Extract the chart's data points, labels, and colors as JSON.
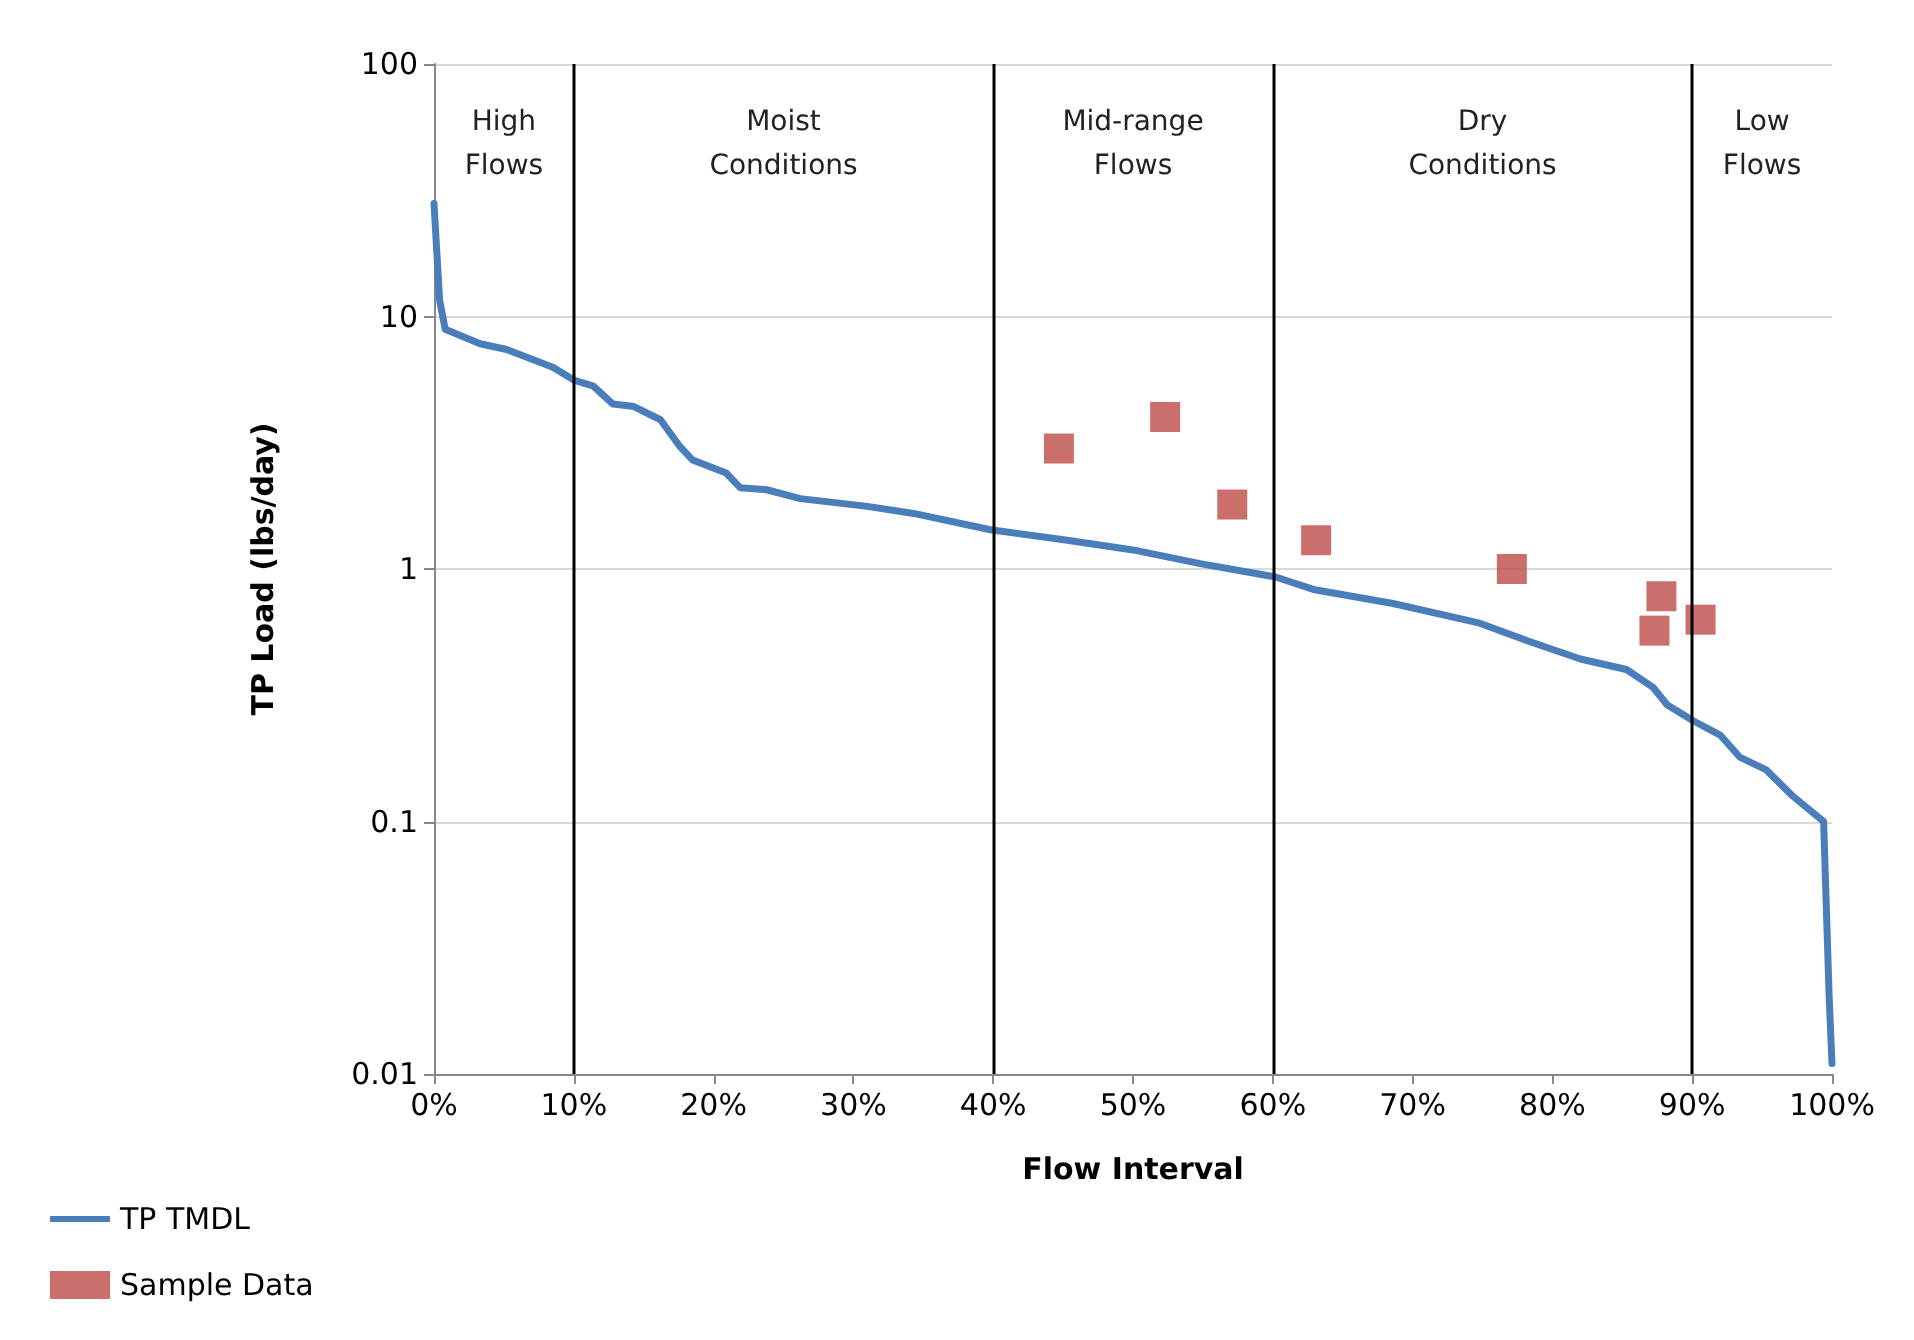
{
  "chart_data": {
    "type": "line",
    "xlabel": "Flow Interval",
    "ylabel": "TP Load (lbs/day)",
    "log": "y",
    "grid": "y",
    "legend": "bottom left",
    "xlim": [
      0,
      100
    ],
    "xticks": [
      {
        "value": 0,
        "label": "0%"
      },
      {
        "value": 10,
        "label": "10%"
      },
      {
        "value": 20,
        "label": "20%"
      },
      {
        "value": 30,
        "label": "30%"
      },
      {
        "value": 40,
        "label": "40%"
      },
      {
        "value": 50,
        "label": "50%"
      },
      {
        "value": 60,
        "label": "60%"
      },
      {
        "value": 70,
        "label": "70%"
      },
      {
        "value": 80,
        "label": "80%"
      },
      {
        "value": 90,
        "label": "90%"
      },
      {
        "value": 100,
        "label": "100%"
      }
    ],
    "ylim": [
      0.01,
      100
    ],
    "yticks": [
      0.01,
      0.1,
      1,
      10,
      100
    ],
    "series": [
      {
        "name": "TP TMDL",
        "color": "#4a7ebb",
        "marker": "none",
        "line_style": "solid",
        "x": [
          0,
          0.4,
          0.8,
          3.3,
          5.2,
          8.5,
          10,
          11.4,
          12.8,
          14.3,
          16.2,
          17.6,
          18.5,
          20.9,
          21.9,
          23.8,
          26.2,
          31,
          34.3,
          39.8,
          45.3,
          50,
          54.8,
          60.2,
          62.9,
          68.6,
          74.8,
          78.2,
          82,
          85.3,
          87.2,
          88.2,
          90.1,
          92,
          93.4,
          95.3,
          97.2,
          99.4,
          99.8,
          100
        ],
        "values": [
          28,
          11.6,
          8.9,
          7.8,
          7.4,
          6.3,
          5.6,
          5.3,
          4.5,
          4.4,
          3.9,
          3.05,
          2.7,
          2.4,
          2.1,
          2.06,
          1.9,
          1.77,
          1.66,
          1.43,
          1.3,
          1.19,
          1.05,
          0.93,
          0.83,
          0.73,
          0.61,
          0.52,
          0.44,
          0.4,
          0.34,
          0.29,
          0.25,
          0.22,
          0.18,
          0.16,
          0.126,
          0.1,
          0.02,
          0.011
        ]
      },
      {
        "name": "Sample Data",
        "type": "scatter",
        "color": "#be4b48",
        "marker": "square",
        "x": [
          44.7,
          52.3,
          57.1,
          63.1,
          77.1,
          87.8,
          87.3,
          90.6
        ],
        "values": [
          3.0,
          4.0,
          1.8,
          1.3,
          1.0,
          0.78,
          0.57,
          0.63
        ]
      }
    ],
    "ref_lines": [
      {
        "axis": "x",
        "value": 10,
        "color": "#000000"
      },
      {
        "axis": "x",
        "value": 40,
        "color": "#000000"
      },
      {
        "axis": "x",
        "value": 60,
        "color": "#000000"
      },
      {
        "axis": "x",
        "value": 90,
        "color": "#000000"
      }
    ],
    "annotations": [
      "High\nFlows",
      "Moist\nConditions",
      "Mid-range\nFlows",
      "Dry\nConditions",
      "Low\nFlows"
    ]
  }
}
